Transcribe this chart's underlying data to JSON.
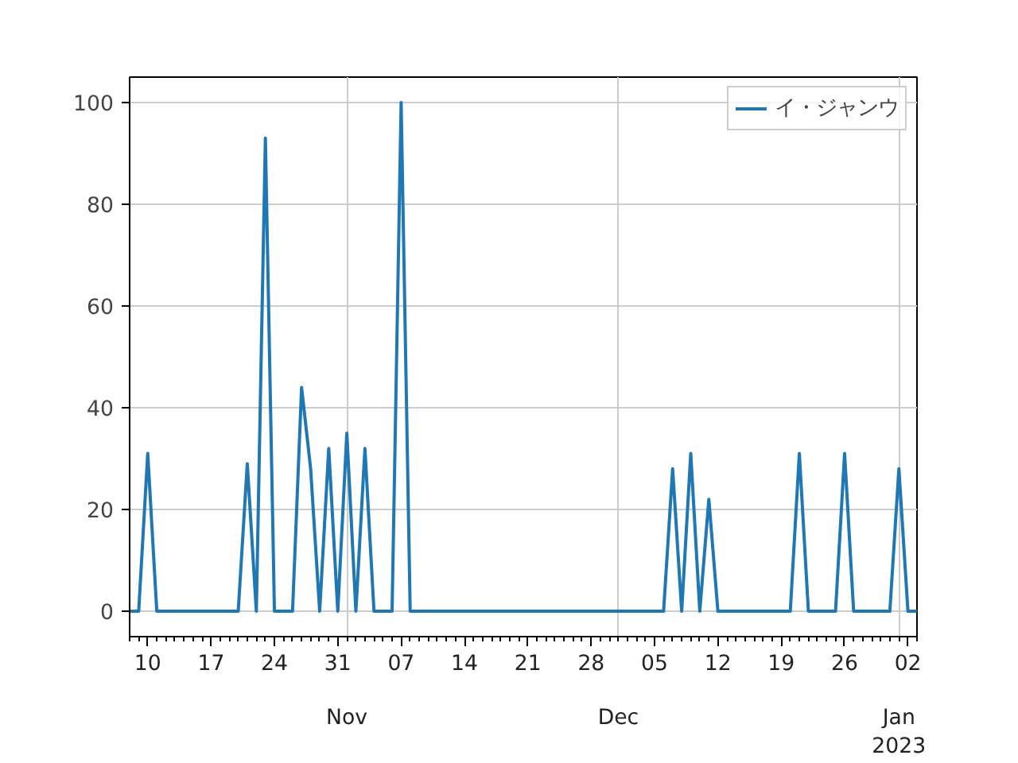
{
  "chart_data": {
    "type": "line",
    "x": [
      "2022-10-08",
      "2022-10-09",
      "2022-10-10",
      "2022-10-11",
      "2022-10-12",
      "2022-10-13",
      "2022-10-14",
      "2022-10-15",
      "2022-10-16",
      "2022-10-17",
      "2022-10-18",
      "2022-10-19",
      "2022-10-20",
      "2022-10-21",
      "2022-10-22",
      "2022-10-23",
      "2022-10-24",
      "2022-10-25",
      "2022-10-26",
      "2022-10-27",
      "2022-10-28",
      "2022-10-29",
      "2022-10-30",
      "2022-10-31",
      "2022-11-01",
      "2022-11-02",
      "2022-11-03",
      "2022-11-04",
      "2022-11-05",
      "2022-11-06",
      "2022-11-07",
      "2022-11-08",
      "2022-11-09",
      "2022-11-10",
      "2022-11-11",
      "2022-11-12",
      "2022-11-13",
      "2022-11-14",
      "2022-11-15",
      "2022-11-16",
      "2022-11-17",
      "2022-11-18",
      "2022-11-19",
      "2022-11-20",
      "2022-11-21",
      "2022-11-22",
      "2022-11-23",
      "2022-11-24",
      "2022-11-25",
      "2022-11-26",
      "2022-11-27",
      "2022-11-28",
      "2022-11-29",
      "2022-11-30",
      "2022-12-01",
      "2022-12-02",
      "2022-12-03",
      "2022-12-04",
      "2022-12-05",
      "2022-12-06",
      "2022-12-07",
      "2022-12-08",
      "2022-12-09",
      "2022-12-10",
      "2022-12-11",
      "2022-12-12",
      "2022-12-13",
      "2022-12-14",
      "2022-12-15",
      "2022-12-16",
      "2022-12-17",
      "2022-12-18",
      "2022-12-19",
      "2022-12-20",
      "2022-12-21",
      "2022-12-22",
      "2022-12-23",
      "2022-12-24",
      "2022-12-25",
      "2022-12-26",
      "2022-12-27",
      "2022-12-28",
      "2022-12-29",
      "2022-12-30",
      "2022-12-31",
      "2023-01-01",
      "2023-01-02",
      "2023-01-03"
    ],
    "series": [
      {
        "name": "イ・ジャンウ",
        "color": "#1f77b4",
        "values": [
          0,
          0,
          31,
          0,
          0,
          0,
          0,
          0,
          0,
          0,
          0,
          0,
          0,
          29,
          0,
          93,
          0,
          0,
          0,
          44,
          28,
          0,
          32,
          0,
          35,
          0,
          32,
          0,
          0,
          0,
          100,
          0,
          0,
          0,
          0,
          0,
          0,
          0,
          0,
          0,
          0,
          0,
          0,
          0,
          0,
          0,
          0,
          0,
          0,
          0,
          0,
          0,
          0,
          0,
          0,
          0,
          0,
          0,
          0,
          0,
          28,
          0,
          31,
          0,
          22,
          0,
          0,
          0,
          0,
          0,
          0,
          0,
          0,
          0,
          31,
          0,
          0,
          0,
          0,
          31,
          0,
          0,
          0,
          0,
          0,
          28,
          0,
          0
        ]
      }
    ],
    "xlim": [
      "2022-10-08",
      "2023-01-03"
    ],
    "xticks": [
      {
        "value": "2022-10-10",
        "label": "10"
      },
      {
        "value": "2022-10-17",
        "label": "17"
      },
      {
        "value": "2022-10-24",
        "label": "24"
      },
      {
        "value": "2022-10-31",
        "label": "31"
      },
      {
        "value": "2022-11-07",
        "label": "07"
      },
      {
        "value": "2022-11-14",
        "label": "14"
      },
      {
        "value": "2022-11-21",
        "label": "21"
      },
      {
        "value": "2022-11-28",
        "label": "28"
      },
      {
        "value": "2022-12-05",
        "label": "05"
      },
      {
        "value": "2022-12-12",
        "label": "12"
      },
      {
        "value": "2022-12-19",
        "label": "19"
      },
      {
        "value": "2022-12-26",
        "label": "26"
      },
      {
        "value": "2023-01-02",
        "label": "02"
      }
    ],
    "annotations": [
      "Nov",
      "Dec",
      "Jan\n2023"
    ],
    "ylim": [
      -5,
      105
    ],
    "yticks": [
      0,
      20,
      40,
      60,
      80,
      100
    ],
    "grid": true,
    "legend": "top right",
    "line_style": "solid"
  }
}
